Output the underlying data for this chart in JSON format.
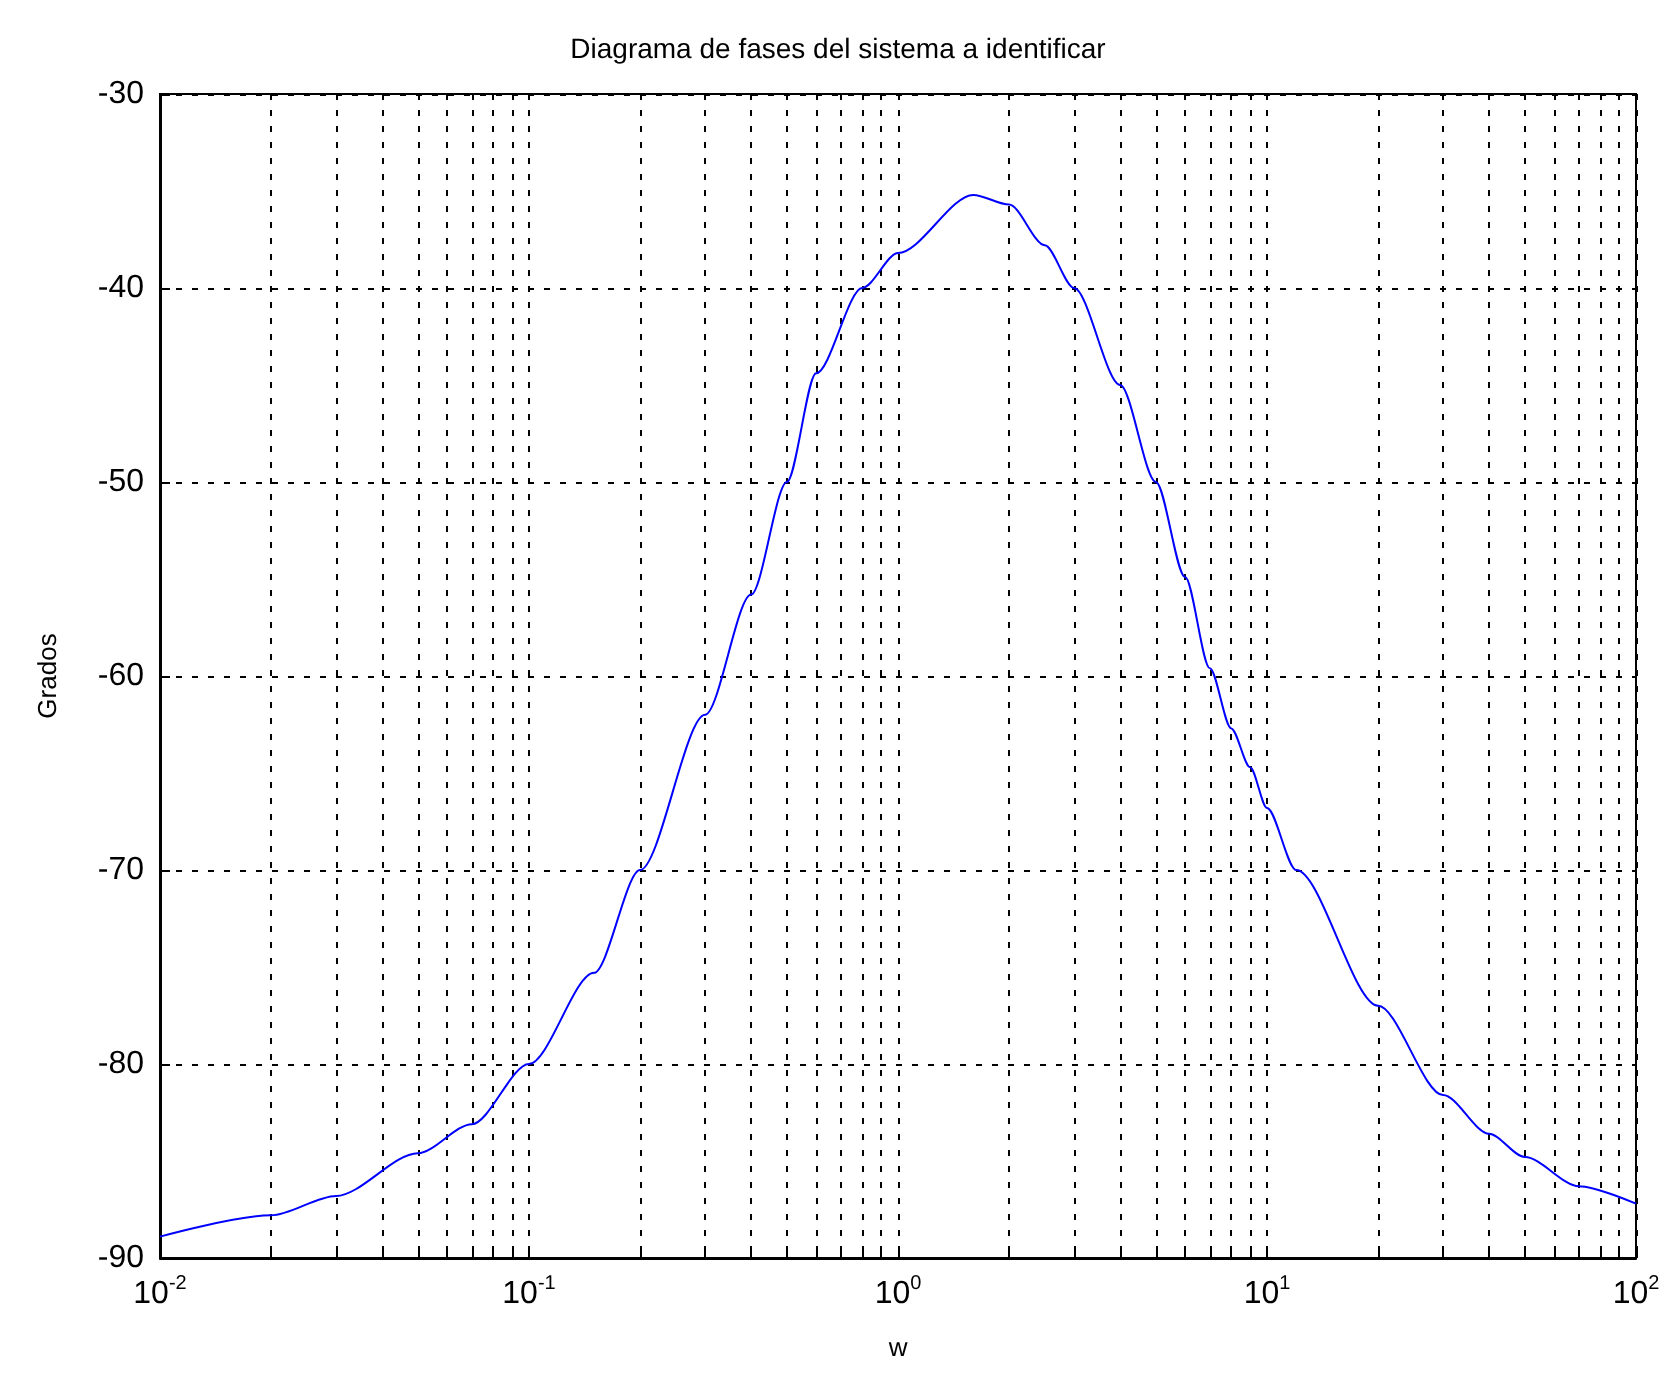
{
  "chart_data": {
    "type": "line",
    "title": "Diagrama de fases del sistema a identificar",
    "xlabel": "w",
    "ylabel": "Grados",
    "log": "x",
    "grid": true,
    "marker": "none",
    "line_style": "solid",
    "xlim": [
      0.01,
      100
    ],
    "ylim": [
      -90,
      -30
    ],
    "xticks": [
      {
        "value": 0.01,
        "label": "10$^{-2}$"
      },
      {
        "value": 0.1,
        "label": "10$^{-1}$"
      },
      {
        "value": 1,
        "label": "10$^{0}$"
      },
      {
        "value": 10,
        "label": "10$^{1}$"
      },
      {
        "value": 100,
        "label": "10$^{2}$"
      }
    ],
    "yticks": [
      -90,
      -80,
      -70,
      -60,
      -50,
      -40,
      -30
    ],
    "series": [
      {
        "color": "#0000ff",
        "x": [
          0.01,
          0.02,
          0.03,
          0.05,
          0.07,
          0.1,
          0.15,
          0.2,
          0.3,
          0.4,
          0.5,
          0.6,
          0.8,
          1,
          1.6,
          2,
          2.5,
          3,
          4,
          5,
          6,
          7,
          8,
          9,
          10,
          12,
          20,
          30,
          40,
          50,
          70,
          100
        ],
        "values": [
          -88.9,
          -87.8,
          -86.8,
          -84.6,
          -83.1,
          -80,
          -75.3,
          -70,
          -62,
          -55.8,
          -50,
          -44.4,
          -40,
          -38.2,
          -35.2,
          -35.7,
          -37.8,
          -40,
          -45,
          -50,
          -54.9,
          -59.6,
          -62.7,
          -64.7,
          -66.8,
          -70,
          -77,
          -81.6,
          -83.6,
          -84.8,
          -86.3,
          -87.2
        ]
      }
    ]
  }
}
